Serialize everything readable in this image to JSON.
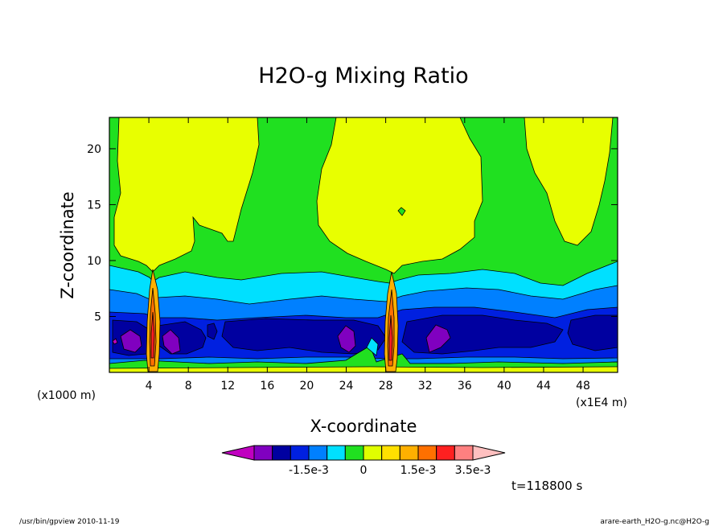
{
  "chart_data": {
    "type": "heatmap",
    "title": "H2O-g Mixing Ratio",
    "xlabel": "X-coordinate",
    "ylabel": "Z-coordinate",
    "x_unit_left": "(x1000 m)",
    "x_unit_right": "(x1E4 m)",
    "xlim": [
      0,
      51.5
    ],
    "ylim": [
      0,
      22.8
    ],
    "x_ticks": [
      4,
      8,
      12,
      16,
      20,
      24,
      28,
      32,
      36,
      40,
      44,
      48
    ],
    "y_ticks": [
      5,
      10,
      15,
      20
    ],
    "colorbar": {
      "colors": [
        "#c000c0",
        "#8000c0",
        "#0000a0",
        "#0020e0",
        "#0080ff",
        "#00e0ff",
        "#20e020",
        "#e0ff00",
        "#ffe000",
        "#ffb000",
        "#ff7000",
        "#ff2020",
        "#ff8080",
        "#ffc0c0"
      ],
      "labels": [
        "-1.5e-3",
        "0",
        "1.5e-3",
        "3.5e-3"
      ]
    },
    "time_label": "t=118800 s"
  },
  "footer": {
    "left": "/usr/bin/gpview  2010-11-19",
    "right": "arare-earth_H2O-g.nc@H2O-g"
  }
}
